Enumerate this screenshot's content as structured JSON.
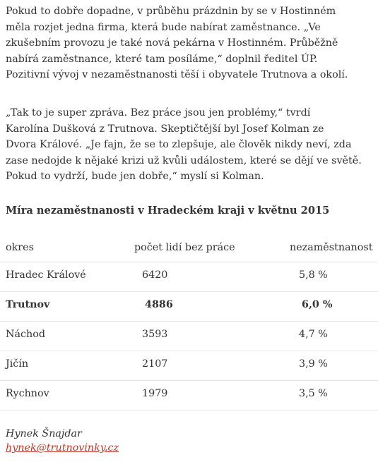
{
  "paragraphs": [
    {
      "lines": [
        "Pokud to dobře dopadne, v průběhu prázdnin by se v Hostinném",
        "měla rozjet jedna firma, která bude nabírat zaměstnance. „Ve",
        "zkušebním provozu je také nová pekárna v Hostinném. Průběžně",
        "nabírá zaměstnance, které tam posíláme,“ doplnil ředitel ÚP.",
        "Pozitivní vývoj v nezaměstnanosti těší i obyvatele Trutnova a okolí."
      ]
    },
    {
      "lines": [
        "„Tak to je super zpráva. Bez práce jsou jen problémy,“ tvrdí",
        "Karolína Dušková z Trutnova. Skeptičtější byl Josef Kolman ze",
        "Dvora Králové. „Je fajn, že se to zlepšuje, ale člověk nikdy neví, zda",
        "zase nedojde k nějaké krizi už kvůli událostem, které se dějí ve světě.",
        "Pokud to vydrží, bude jen dobře,“ myslí si Kolman."
      ]
    }
  ],
  "table": {
    "title": "Míra nezaměstnanosti v Hradeckém kraji v květnu 2015",
    "headers": [
      "okres",
      "počet lidí bez práce",
      "nezaměstnanost"
    ],
    "rows": [
      {
        "okres": "Hradec Králové",
        "pocet": "6420",
        "mira": "5,8 %",
        "bold": false
      },
      {
        "okres": "Trutnov",
        "pocet": "4886",
        "mira": "6,0 %",
        "bold": true
      },
      {
        "okres": "Náchod",
        "pocet": "3593",
        "mira": "4,7 %",
        "bold": false
      },
      {
        "okres": "Jičín",
        "pocet": "2107",
        "mira": "3,9 %",
        "bold": false
      },
      {
        "okres": "Rychnov",
        "pocet": "1979",
        "mira": "3,5 %",
        "bold": false
      }
    ]
  },
  "signature": {
    "author": "Hynek Šnajdar",
    "email": "hynek@trutnovinky.cz"
  },
  "colors": {
    "text": "#333333",
    "link": "#c0392b",
    "row_divider": "#e6e6e6"
  }
}
